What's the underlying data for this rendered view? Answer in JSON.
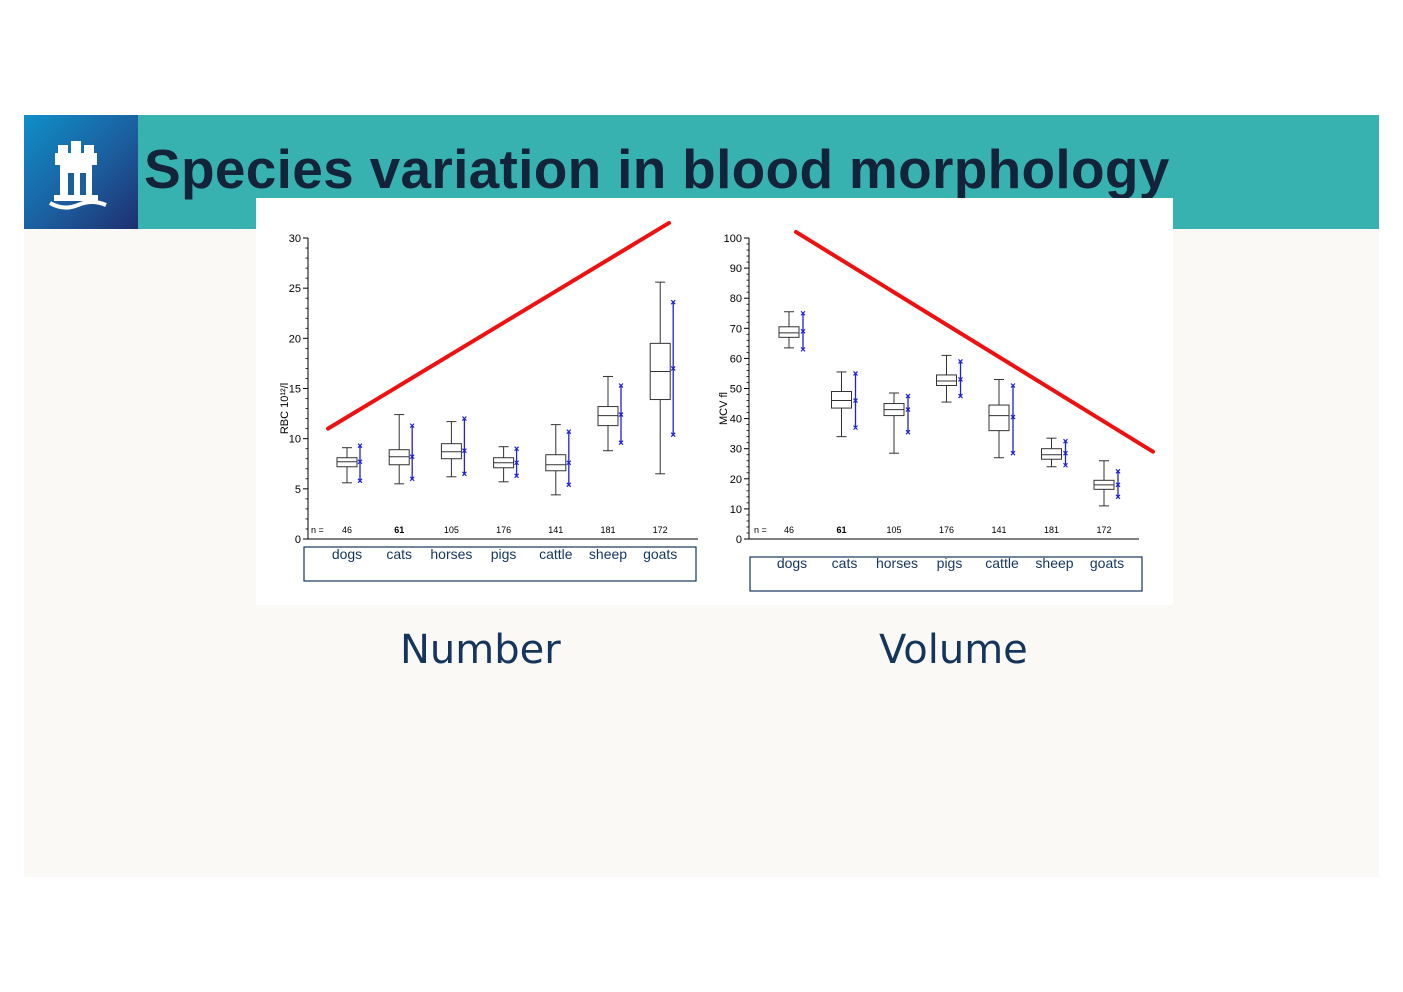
{
  "slide": {
    "title": "Species variation in blood morphology",
    "logo_icon": "castle-icon",
    "captions": {
      "left": "Number",
      "right": "Volume"
    }
  },
  "colors": {
    "title_bar": "#38b2b0",
    "title_text": "#13233a",
    "trend_line": "#ee1111",
    "reference_range": "#2020dd",
    "caption_text": "#16355c"
  },
  "chart_data": [
    {
      "type": "box",
      "ylabel": "RBC  10¹²/l",
      "ylim": [
        0,
        30
      ],
      "yticks": [
        0,
        5,
        10,
        15,
        20,
        25,
        30
      ],
      "n_label": "n =",
      "categories": [
        "dogs",
        "cats",
        "horses",
        "pigs",
        "cattle",
        "sheep",
        "goats"
      ],
      "n": [
        "46",
        "61",
        "105",
        "176",
        "141",
        "181",
        "172"
      ],
      "boxes": [
        {
          "min": 5.6,
          "q1": 7.2,
          "median": 7.7,
          "q3": 8.1,
          "max": 9.1
        },
        {
          "min": 5.5,
          "q1": 7.4,
          "median": 8.2,
          "q3": 8.9,
          "max": 12.4
        },
        {
          "min": 6.2,
          "q1": 8.0,
          "median": 8.7,
          "q3": 9.5,
          "max": 11.7
        },
        {
          "min": 5.7,
          "q1": 7.1,
          "median": 7.6,
          "q3": 8.1,
          "max": 9.2
        },
        {
          "min": 4.4,
          "q1": 6.8,
          "median": 7.4,
          "q3": 8.4,
          "max": 11.4
        },
        {
          "min": 8.8,
          "q1": 11.3,
          "median": 12.3,
          "q3": 13.2,
          "max": 16.2
        },
        {
          "min": 6.5,
          "q1": 13.9,
          "median": 16.7,
          "q3": 19.5,
          "max": 25.6
        }
      ],
      "reference_ranges": [
        {
          "low": 5.8,
          "mid": 7.7,
          "high": 9.3
        },
        {
          "low": 6.0,
          "mid": 8.2,
          "high": 11.3
        },
        {
          "low": 6.5,
          "mid": 8.8,
          "high": 12.0
        },
        {
          "low": 6.3,
          "mid": 7.6,
          "high": 9.0
        },
        {
          "low": 5.4,
          "mid": 7.6,
          "high": 10.7
        },
        {
          "low": 9.6,
          "mid": 12.4,
          "high": 15.3
        },
        {
          "low": 10.4,
          "mid": 17.0,
          "high": 23.6
        }
      ],
      "trend": {
        "from": 11.0,
        "to": 31.5,
        "direction": "increasing"
      }
    },
    {
      "type": "box",
      "ylabel": "MCV fl",
      "ylim": [
        0,
        100
      ],
      "yticks": [
        0,
        10,
        20,
        30,
        40,
        50,
        60,
        70,
        80,
        90,
        100
      ],
      "n_label": "n =",
      "categories": [
        "dogs",
        "cats",
        "horses",
        "pigs",
        "cattle",
        "sheep",
        "goats"
      ],
      "n": [
        "46",
        "61",
        "105",
        "176",
        "141",
        "181",
        "172"
      ],
      "boxes": [
        {
          "min": 63.5,
          "q1": 67.0,
          "median": 68.5,
          "q3": 70.5,
          "max": 75.5
        },
        {
          "min": 34.0,
          "q1": 43.5,
          "median": 46.0,
          "q3": 49.0,
          "max": 55.5
        },
        {
          "min": 28.5,
          "q1": 41.0,
          "median": 43.0,
          "q3": 45.0,
          "max": 48.5
        },
        {
          "min": 45.5,
          "q1": 51.0,
          "median": 52.5,
          "q3": 54.5,
          "max": 61.0
        },
        {
          "min": 27.0,
          "q1": 36.0,
          "median": 41.0,
          "q3": 44.5,
          "max": 53.0
        },
        {
          "min": 24.0,
          "q1": 26.5,
          "median": 28.0,
          "q3": 30.0,
          "max": 33.5
        },
        {
          "min": 11.0,
          "q1": 16.5,
          "median": 18.0,
          "q3": 19.5,
          "max": 26.0
        }
      ],
      "reference_ranges": [
        {
          "low": 63.0,
          "mid": 69.0,
          "high": 75.0
        },
        {
          "low": 37.0,
          "mid": 46.0,
          "high": 55.0
        },
        {
          "low": 35.5,
          "mid": 43.0,
          "high": 47.5
        },
        {
          "low": 47.5,
          "mid": 53.0,
          "high": 59.0
        },
        {
          "low": 28.5,
          "mid": 40.5,
          "high": 51.0
        },
        {
          "low": 24.5,
          "mid": 28.5,
          "high": 32.5
        },
        {
          "low": 14.0,
          "mid": 18.0,
          "high": 22.5
        }
      ],
      "trend": {
        "from": 102.0,
        "to": 29.0,
        "direction": "decreasing"
      }
    }
  ]
}
